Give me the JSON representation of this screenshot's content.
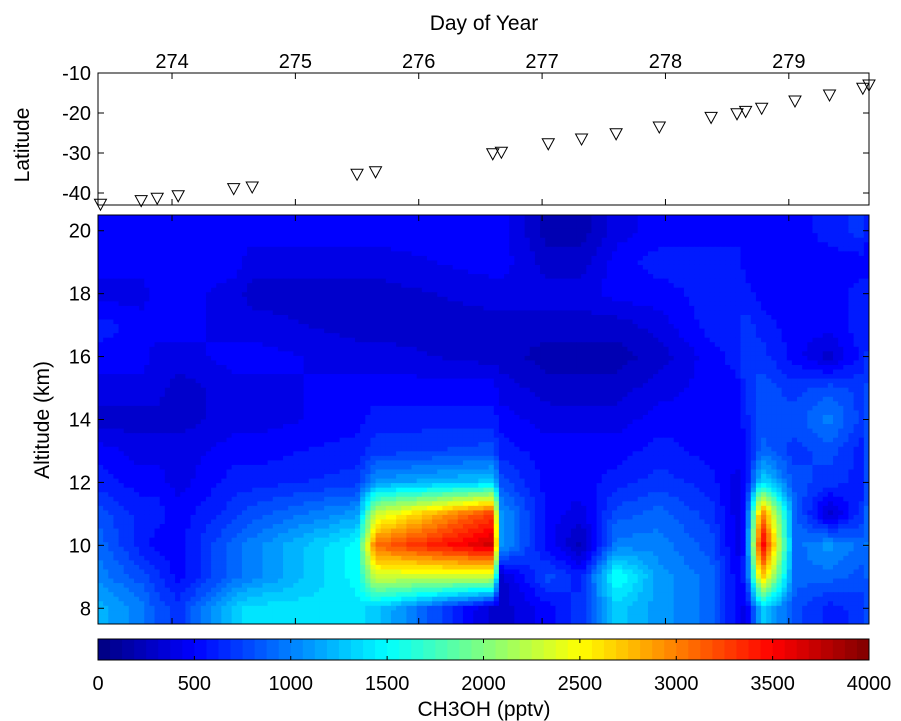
{
  "chart_data": [
    {
      "type": "scatter",
      "panel": "top",
      "xlabel": "Day of Year",
      "ylabel": "Latitude",
      "x_axis_position": "top",
      "xlim": [
        273.4,
        279.65
      ],
      "ylim": [
        -43,
        -10
      ],
      "x_ticks": [
        274,
        275,
        276,
        277,
        278,
        279
      ],
      "y_ticks": [
        -10,
        -20,
        -30,
        -40
      ],
      "marker": "downward-triangle",
      "grid": false,
      "points": [
        {
          "x": 273.42,
          "y": -42.8
        },
        {
          "x": 273.75,
          "y": -41.9
        },
        {
          "x": 273.88,
          "y": -41.3
        },
        {
          "x": 274.05,
          "y": -40.7
        },
        {
          "x": 274.5,
          "y": -38.9
        },
        {
          "x": 274.65,
          "y": -38.5
        },
        {
          "x": 275.5,
          "y": -35.3
        },
        {
          "x": 275.65,
          "y": -34.7
        },
        {
          "x": 276.6,
          "y": -30.2
        },
        {
          "x": 276.67,
          "y": -29.8
        },
        {
          "x": 277.05,
          "y": -27.7
        },
        {
          "x": 277.32,
          "y": -26.5
        },
        {
          "x": 277.6,
          "y": -25.2
        },
        {
          "x": 277.95,
          "y": -23.5
        },
        {
          "x": 278.37,
          "y": -21.1
        },
        {
          "x": 278.58,
          "y": -20.2
        },
        {
          "x": 278.65,
          "y": -19.6
        },
        {
          "x": 278.78,
          "y": -18.8
        },
        {
          "x": 279.05,
          "y": -17.0
        },
        {
          "x": 279.33,
          "y": -15.5
        },
        {
          "x": 279.6,
          "y": -13.8
        },
        {
          "x": 279.65,
          "y": -13.0
        }
      ]
    },
    {
      "type": "heatmap",
      "panel": "bottom",
      "xlabel": "",
      "ylabel": "Altitude (km)",
      "xlim": [
        273.4,
        279.65
      ],
      "ylim": [
        7.5,
        20.5
      ],
      "y_ticks": [
        8,
        10,
        12,
        14,
        16,
        18,
        20
      ],
      "colormap": "jet",
      "x": [
        273.42,
        273.75,
        273.88,
        274.05,
        274.5,
        274.65,
        275.5,
        275.65,
        276.6,
        276.67,
        277.05,
        277.32,
        277.6,
        277.95,
        278.37,
        278.58,
        278.65,
        278.78,
        279.05,
        279.33,
        279.6,
        279.65
      ],
      "y": [
        8,
        9,
        10,
        11,
        12,
        13,
        14,
        15,
        16,
        17,
        18,
        19,
        20
      ],
      "z": [
        [
          1200,
          1000,
          800,
          700,
          1300,
          1400,
          1400,
          1300,
          300,
          300,
          500,
          700,
          1300,
          1100,
          900,
          500,
          400,
          1300,
          800,
          600,
          700,
          800
        ],
        [
          1000,
          800,
          700,
          500,
          900,
          1000,
          1500,
          2300,
          2300,
          300,
          800,
          600,
          1600,
          1100,
          900,
          500,
          600,
          2800,
          900,
          900,
          800,
          900
        ],
        [
          900,
          600,
          500,
          500,
          900,
          1000,
          1500,
          3100,
          3700,
          1100,
          500,
          200,
          1000,
          1000,
          800,
          400,
          600,
          3700,
          900,
          1100,
          900,
          1000
        ],
        [
          800,
          600,
          600,
          500,
          700,
          800,
          1100,
          2300,
          3300,
          1100,
          500,
          400,
          800,
          900,
          700,
          400,
          600,
          3100,
          900,
          300,
          700,
          1000
        ],
        [
          600,
          500,
          500,
          400,
          600,
          600,
          700,
          1100,
          1300,
          800,
          500,
          500,
          600,
          700,
          600,
          400,
          500,
          1400,
          800,
          700,
          600,
          900
        ],
        [
          500,
          400,
          400,
          400,
          500,
          500,
          600,
          700,
          800,
          600,
          500,
          500,
          500,
          600,
          500,
          500,
          500,
          900,
          700,
          800,
          600,
          900
        ],
        [
          300,
          300,
          300,
          300,
          400,
          400,
          500,
          600,
          600,
          500,
          400,
          400,
          400,
          500,
          500,
          500,
          600,
          800,
          800,
          1000,
          700,
          900
        ],
        [
          400,
          400,
          400,
          300,
          400,
          400,
          500,
          500,
          500,
          400,
          300,
          300,
          300,
          400,
          500,
          500,
          700,
          800,
          700,
          800,
          700,
          800
        ],
        [
          500,
          500,
          400,
          400,
          500,
          500,
          400,
          400,
          300,
          300,
          200,
          200,
          200,
          300,
          500,
          600,
          700,
          700,
          500,
          300,
          600,
          700
        ],
        [
          600,
          500,
          500,
          500,
          400,
          400,
          300,
          300,
          300,
          300,
          300,
          300,
          300,
          400,
          600,
          600,
          700,
          600,
          500,
          500,
          600,
          600
        ],
        [
          400,
          400,
          500,
          500,
          400,
          300,
          300,
          300,
          400,
          400,
          400,
          400,
          500,
          500,
          600,
          600,
          600,
          500,
          500,
          500,
          600,
          600
        ],
        [
          500,
          500,
          500,
          500,
          500,
          400,
          400,
          400,
          500,
          500,
          300,
          300,
          500,
          600,
          600,
          600,
          500,
          500,
          500,
          500,
          500,
          500
        ],
        [
          500,
          500,
          500,
          500,
          500,
          500,
          500,
          500,
          500,
          500,
          200,
          200,
          400,
          500,
          500,
          500,
          500,
          500,
          500,
          600,
          700,
          500
        ]
      ],
      "colorbar": {
        "label": "CH3OH (pptv)",
        "min": 0,
        "max": 4000,
        "ticks": [
          0,
          500,
          1000,
          1500,
          2000,
          2500,
          3000,
          3500,
          4000
        ],
        "position": "bottom"
      }
    }
  ]
}
